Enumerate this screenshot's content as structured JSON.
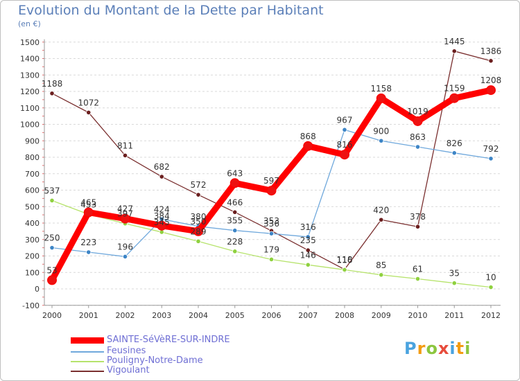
{
  "chart_data": {
    "type": "line",
    "title": "Evolution du Montant de la Dette par Habitant",
    "subtitle": "(en €)",
    "xlabel": "",
    "ylabel": "",
    "x": [
      "2000",
      "2001",
      "2002",
      "2003",
      "2004",
      "2005",
      "2006",
      "2007",
      "2008",
      "2009",
      "2010",
      "2011",
      "2012"
    ],
    "y_ticks": [
      -100,
      0,
      100,
      200,
      300,
      400,
      500,
      600,
      700,
      800,
      900,
      1000,
      1100,
      1200,
      1300,
      1400,
      1500
    ],
    "ylim": [
      -100,
      1500
    ],
    "grid": "horizontal dashed",
    "legend_placement": "bottom-left",
    "series": [
      {
        "name": "SAINTE-SéVèRE-SUR-INDRE",
        "color": "#ff0000",
        "point_color": "#ee1111",
        "width": 9,
        "values": [
          53,
          465,
          427,
          384,
          350,
          643,
          597,
          868,
          816,
          1158,
          1019,
          1159,
          1208
        ],
        "labels": [
          "53",
          "465",
          "427",
          "384",
          "350",
          "643",
          "597",
          "868",
          "816",
          "1158",
          "1019",
          "1159",
          "1208"
        ]
      },
      {
        "name": "Feusines",
        "color": "#6fa8dc",
        "point_color": "#3d85c6",
        "width": 1.3,
        "values": [
          250,
          223,
          196,
          424,
          380,
          355,
          336,
          316,
          967,
          900,
          863,
          826,
          792
        ],
        "labels": [
          "250",
          "223",
          "196",
          "424",
          "380",
          "355",
          "336",
          "316",
          "967",
          "900",
          "863",
          "826",
          "792"
        ]
      },
      {
        "name": "Pouligny-Notre-Dame",
        "color": "#b6e36b",
        "point_color": "#8fd13f",
        "width": 1.3,
        "values": [
          537,
          453,
          397,
          345,
          289,
          228,
          179,
          146,
          116,
          85,
          61,
          35,
          10
        ],
        "labels": [
          "537",
          "453",
          "397",
          "345",
          "289",
          "228",
          "179",
          "146",
          "116",
          "85",
          "61",
          "35",
          "10"
        ]
      },
      {
        "name": "Vigoulant",
        "color": "#7a2f2f",
        "point_color": "#6b1f1f",
        "width": 1.3,
        "values": [
          1188,
          1072,
          811,
          682,
          572,
          466,
          353,
          235,
          118,
          420,
          378,
          1445,
          1386
        ],
        "labels": [
          "1188",
          "1072",
          "811",
          "682",
          "572",
          "466",
          "353",
          "235",
          "118",
          "420",
          "378",
          "1445",
          "1386"
        ]
      }
    ]
  },
  "brand": {
    "text": "Proxiti",
    "letters": [
      "P",
      "r",
      "o",
      "x",
      "i",
      "t",
      "i"
    ],
    "colors": [
      "#4aa3df",
      "#f39c12",
      "#8cc63f",
      "#e74c3c",
      "#4aa3df",
      "#f39c12",
      "#8cc63f"
    ]
  }
}
